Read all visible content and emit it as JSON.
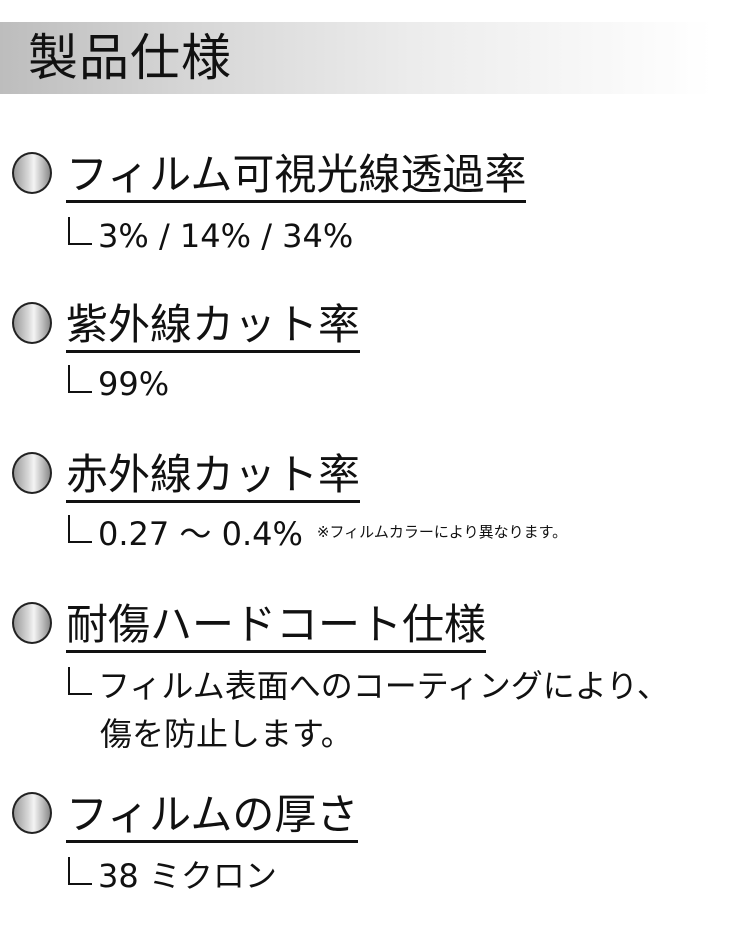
{
  "header": {
    "title": "製品仕様"
  },
  "specs": [
    {
      "heading": "フィルム可視光線透過率",
      "value": "3% / 14% / 34%"
    },
    {
      "heading": "紫外線カット率",
      "value": "99%"
    },
    {
      "heading": "赤外線カット率",
      "value": "0.27 ～ 0.4%",
      "note": "※フィルムカラーにより異なります。"
    },
    {
      "heading": "耐傷ハードコート仕様",
      "value": "フィルム表面へのコーティングにより、",
      "value_line2": "傷を防止します。"
    },
    {
      "heading": "フィルムの厚さ",
      "value": "38 ミクロン"
    }
  ]
}
